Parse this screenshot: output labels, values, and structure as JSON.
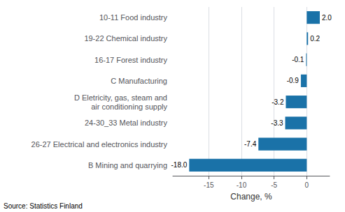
{
  "chart_data": {
    "type": "bar",
    "orientation": "horizontal",
    "categories": [
      "B Mining and quarrying",
      "26-27 Electrical and electronics industry",
      "24-30_33 Metal industry",
      "D Eletricity, gas, steam and\nair conditioning supply",
      "C Manufacturing",
      "16-17 Forest industry",
      "19-22 Chemical industry",
      "10-11 Food industry"
    ],
    "values": [
      -18.0,
      -7.4,
      -3.3,
      -3.2,
      -0.9,
      -0.1,
      0.2,
      2.0
    ],
    "value_labels": [
      "-18.0",
      "-7.4",
      "-3.3",
      "-3.2",
      "-0.9",
      "-0.1",
      "0.2",
      "2.0"
    ],
    "color": "#1a72a8",
    "xlabel": "Change, %",
    "xlim": [
      -20.5,
      3.5
    ],
    "xticks": [
      -15,
      -10,
      -5,
      0
    ],
    "grid": true,
    "data_labels": true,
    "annotations": [
      "Source: Statistics Finland"
    ]
  }
}
